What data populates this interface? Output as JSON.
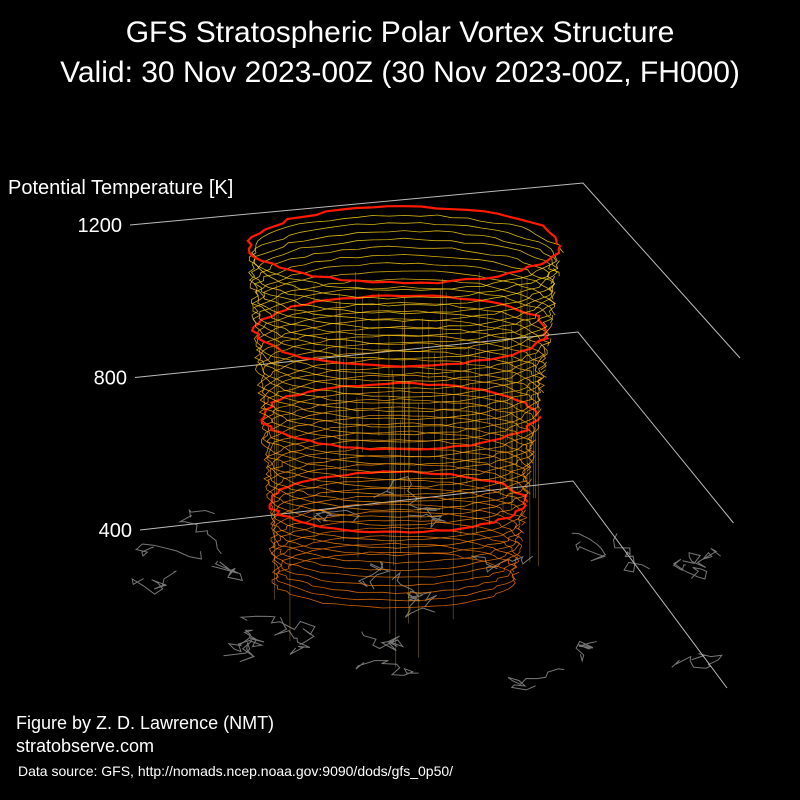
{
  "chart_data": {
    "type": "vortex3d",
    "title": "GFS Stratospheric Polar Vortex Structure",
    "subtitle": "Valid: 30 Nov 2023-00Z  (30 Nov 2023-00Z, FH000)",
    "zlabel": "Potential Temperature [K]",
    "zlim": [
      400,
      1200
    ],
    "zticks": [
      400,
      800,
      1200
    ],
    "annotations": [
      "Figure by Z. D. Lawrence (NMT)",
      "stratobserve.com",
      "Data source: GFS, http://nomads.ncep.noaa.gov:9090/dods/gfs_0p50/"
    ]
  }
}
